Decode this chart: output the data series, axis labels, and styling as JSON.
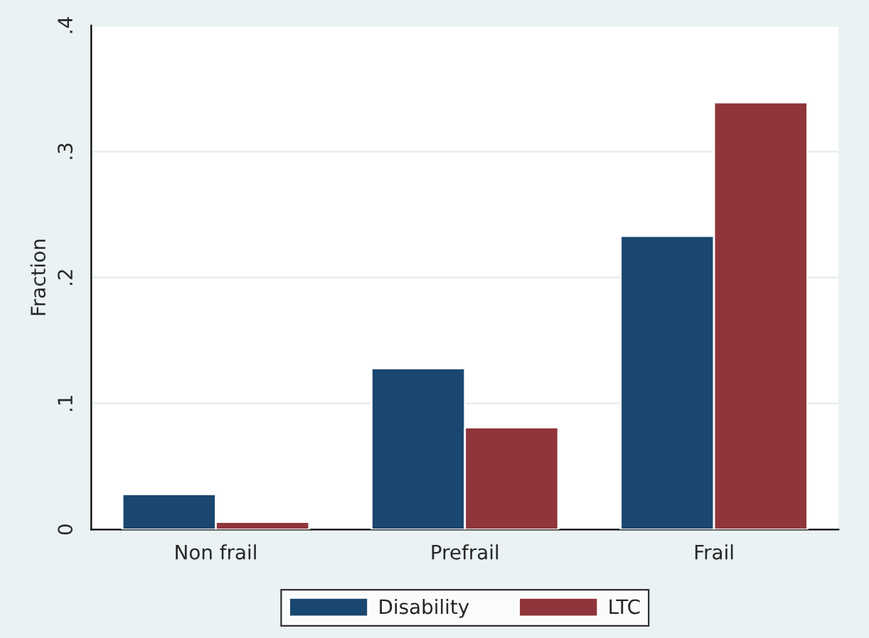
{
  "chart_data": {
    "type": "bar",
    "ylabel": "Fraction",
    "categories": [
      "Non frail",
      "Prefrail",
      "Frail"
    ],
    "series": [
      {
        "name": "Disability",
        "color": "#1a476f",
        "values": [
          0.028,
          0.128,
          0.233
        ]
      },
      {
        "name": "LTC",
        "color": "#90353b",
        "values": [
          0.006,
          0.081,
          0.339
        ]
      }
    ],
    "ylim": [
      0,
      0.4
    ],
    "yticks": [
      {
        "value": 0,
        "label": "0"
      },
      {
        "value": 0.1,
        "label": ".1"
      },
      {
        "value": 0.2,
        "label": ".2"
      },
      {
        "value": 0.3,
        "label": ".3"
      },
      {
        "value": 0.4,
        "label": ".4"
      }
    ],
    "grid": "y",
    "legend": "bottom"
  }
}
